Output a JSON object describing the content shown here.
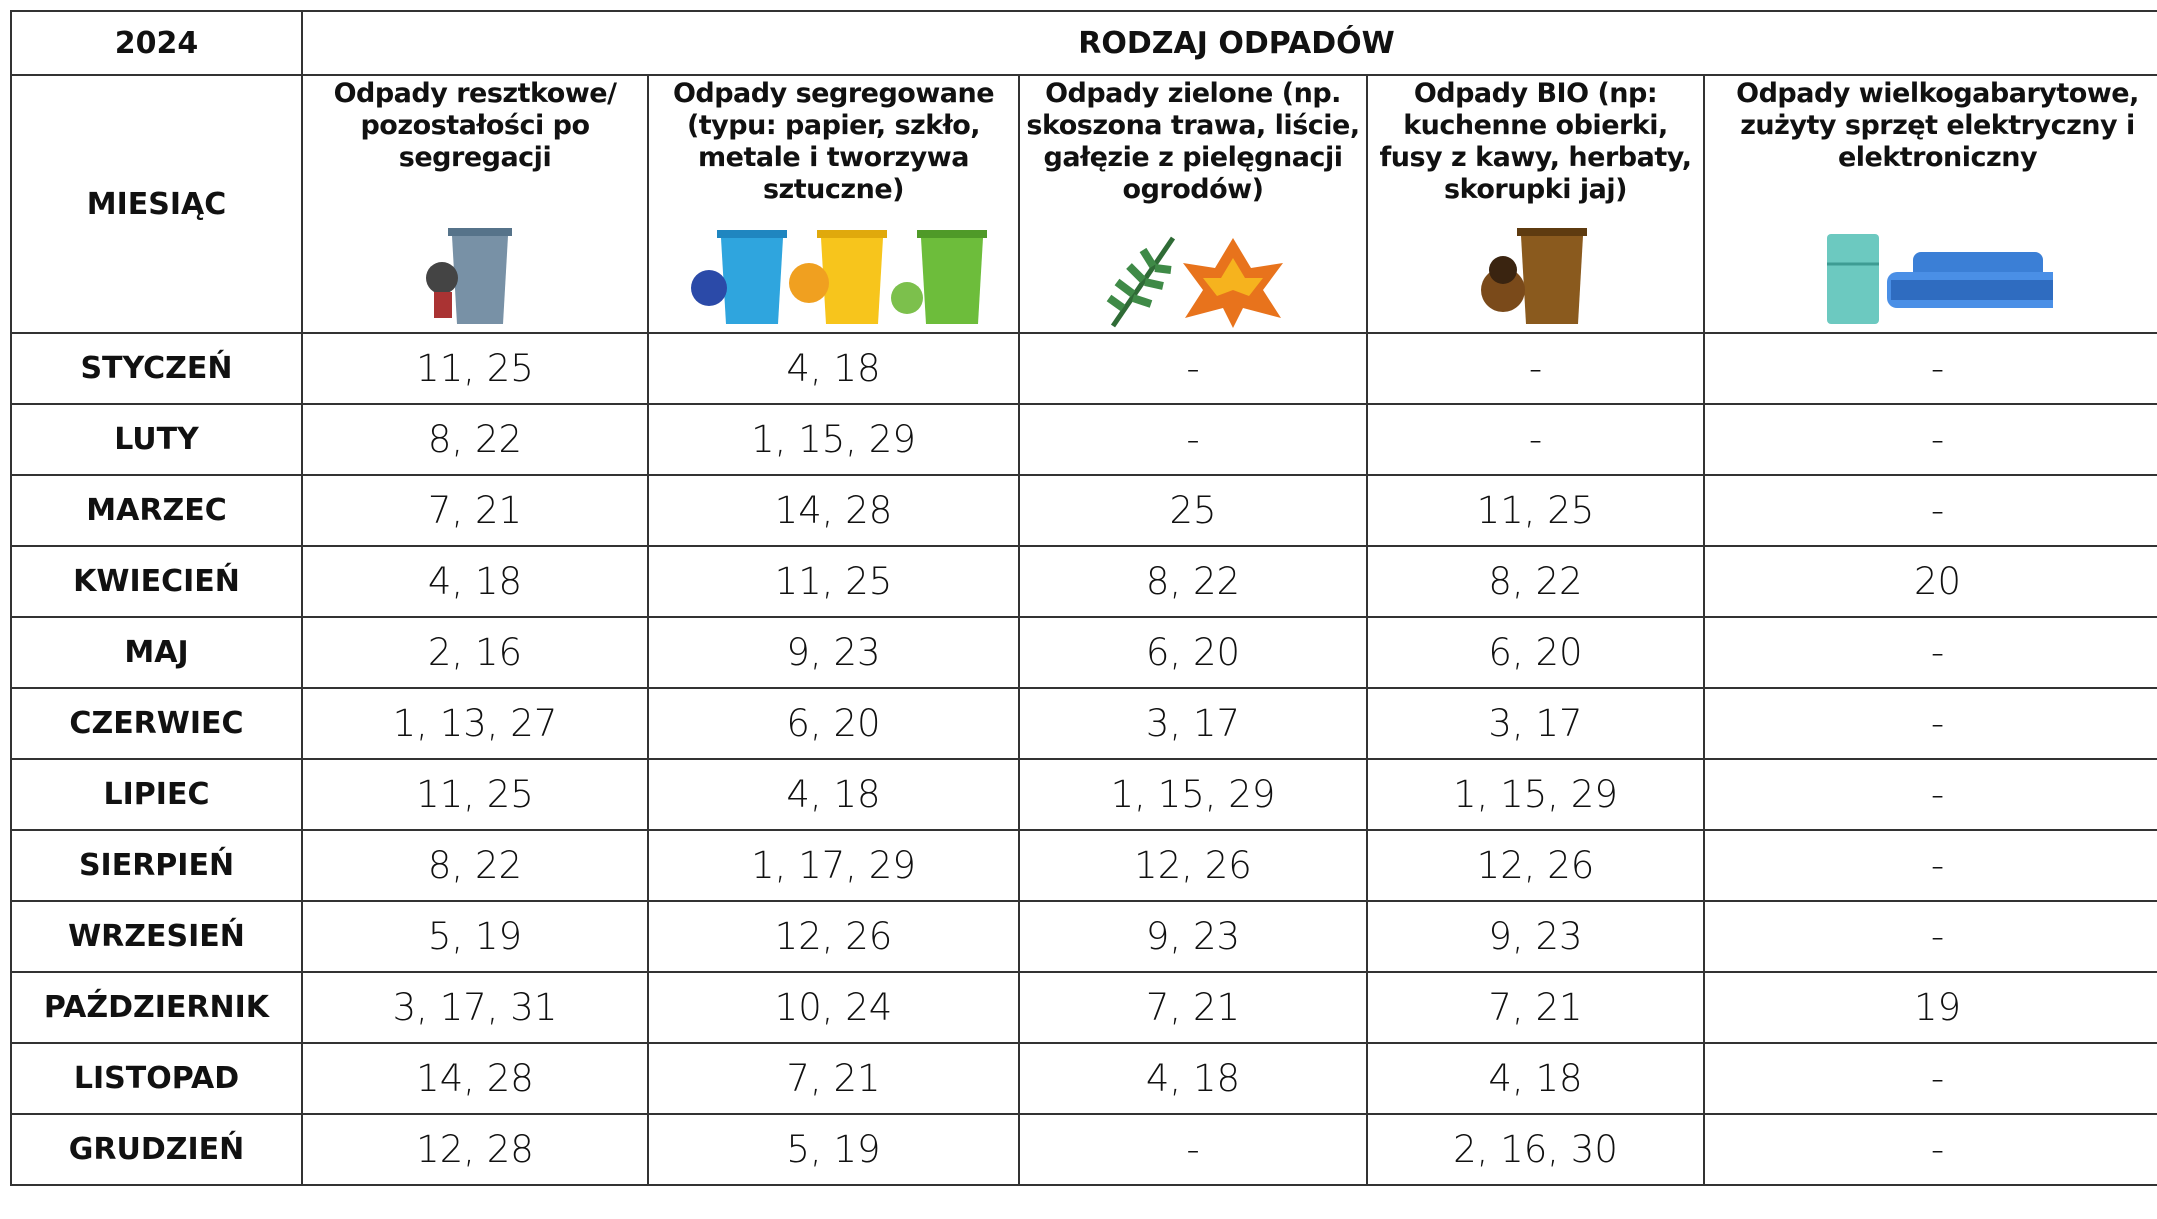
{
  "header": {
    "year": "2024",
    "title": "RODZAJ ODPADÓW",
    "month_label": "MIESIĄC",
    "columns": [
      "Odpady resztkowe/ pozostałości po segregacji",
      "Odpady segregowane (typu: papier, szkło, metale i tworzywa sztuczne)",
      "Odpady zielone (np. skoszona trawa, liście, gałęzie z pielęgnacji ogrodów)",
      "Odpady BIO (np: kuchenne obierki, fusy z kawy, herbaty, skorupki jaj)",
      "Odpady wielkogabarytowe, zużyty sprzęt elektryczny i elektroniczny"
    ]
  },
  "table": {
    "rows": [
      [
        "STYCZEŃ",
        "11, 25",
        "4, 18",
        "-",
        "-",
        "-"
      ],
      [
        "LUTY",
        "8, 22",
        "1, 15, 29",
        "-",
        "-",
        "-"
      ],
      [
        "MARZEC",
        "7, 21",
        "14, 28",
        "25",
        "11, 25",
        "-"
      ],
      [
        "KWIECIEŃ",
        "4, 18",
        "11, 25",
        "8, 22",
        "8, 22",
        "20"
      ],
      [
        "MAJ",
        "2, 16",
        "9, 23",
        "6, 20",
        "6, 20",
        "-"
      ],
      [
        "CZERWIEC",
        "1, 13, 27",
        "6, 20",
        "3, 17",
        "3, 17",
        "-"
      ],
      [
        "LIPIEC",
        "11, 25",
        "4, 18",
        "1, 15, 29",
        "1, 15, 29",
        "-"
      ],
      [
        "SIERPIEŃ",
        "8, 22",
        "1, 17, 29",
        "12, 26",
        "12, 26",
        "-"
      ],
      [
        "WRZESIEŃ",
        "5, 19",
        "12, 26",
        "9, 23",
        "9, 23",
        "-"
      ],
      [
        "PAŹDZIERNIK",
        "3, 17, 31",
        "10, 24",
        "7, 21",
        "7, 21",
        "19"
      ],
      [
        "LISTOPAD",
        "14, 28",
        "7, 21",
        "4, 18",
        "4, 18",
        "-"
      ],
      [
        "GRUDZIEŃ",
        "12, 28",
        "5, 19",
        "-",
        "2, 16, 30",
        "-"
      ]
    ]
  }
}
